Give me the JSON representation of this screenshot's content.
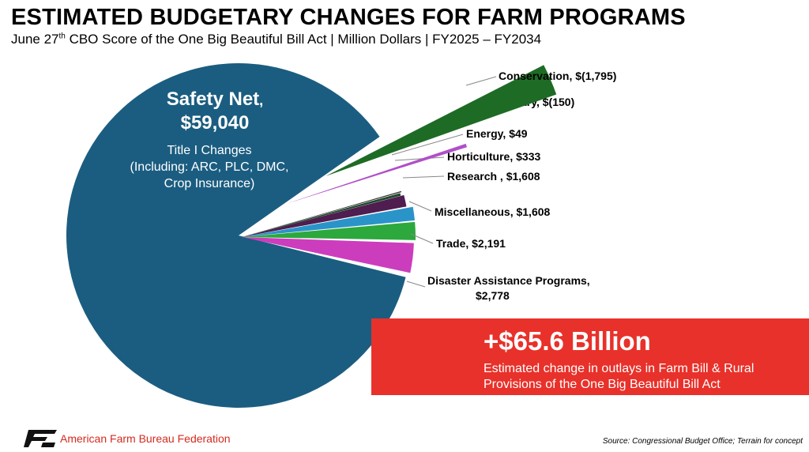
{
  "header": {
    "title": "ESTIMATED BUDGETARY CHANGES FOR FARM PROGRAMS",
    "subtitle_pre": "June 27",
    "subtitle_sup": "th",
    "subtitle_post": " CBO Score of the One Big Beautiful Bill Act | Million Dollars | FY2025 – FY2034"
  },
  "safety_net": {
    "name": "Safety Net",
    "comma": ",",
    "value": "$59,040",
    "desc_line1": "Title I Changes",
    "desc_line2": "(Including: ARC, PLC, DMC,",
    "desc_line3": "Crop Insurance)"
  },
  "banner": {
    "big": "+$65.6 Billion",
    "line1": "Estimated change in outlays in Farm Bill & Rural",
    "line2": "Provisions of the One Big Beautiful Bill Act"
  },
  "footer": {
    "org": "American Farm Bureau Federation",
    "source": "Source: Congressional Budget Office; Terrain for concept"
  },
  "chart_data": {
    "type": "pie",
    "units": "Million Dollars",
    "slices": [
      {
        "name": "Safety Net",
        "value": 59040,
        "color": "#1b5d80"
      },
      {
        "name": "Disaster Assistance Programs",
        "value": 2778,
        "color": "#cc3dbd",
        "label": "Disaster Assistance Programs,",
        "label2": "$2,778"
      },
      {
        "name": "Trade",
        "value": 2191,
        "color": "#2ca83d",
        "label": "Trade,  $2,191"
      },
      {
        "name": "Miscellaneous",
        "value": 1608,
        "color": "#2a94c9",
        "label": "Miscellaneous,  $1,608"
      },
      {
        "name": "Research",
        "value": 1608,
        "color": "#4f1d4f",
        "label": "Research ,  $1,608"
      },
      {
        "name": "Horticulture",
        "value": 333,
        "color": "#1e4a2c",
        "label": "Horticulture,  $333"
      },
      {
        "name": "Energy",
        "value": 49,
        "color": "#3a3a3a",
        "label": "Energy,  $49"
      },
      {
        "name": "Forestry",
        "value": -150,
        "color": "#b04fc8",
        "label": "Forestry,  $(150)"
      },
      {
        "name": "Conservation",
        "value": -1795,
        "color": "#1e6b25",
        "label": "Conservation,  $(1,795)"
      }
    ]
  }
}
